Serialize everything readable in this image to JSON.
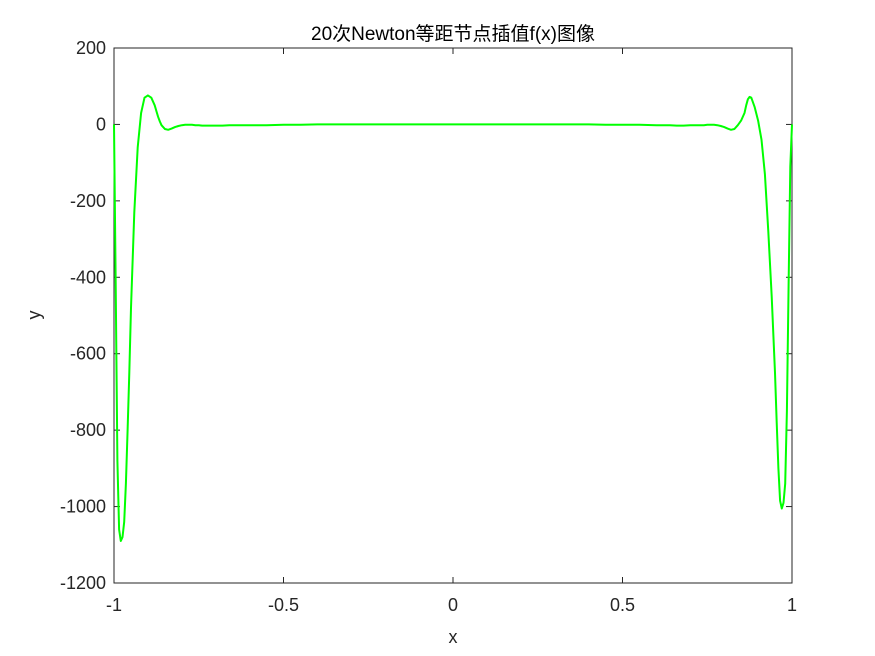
{
  "chart_data": {
    "type": "line",
    "title": "20次Newton等距节点插值f(x)图像",
    "xlabel": "x",
    "ylabel": "y",
    "xlim": [
      -1,
      1
    ],
    "ylim": [
      -1200,
      200
    ],
    "xticks": [
      -1,
      -0.5,
      0,
      0.5,
      1
    ],
    "xtick_labels": [
      "-1",
      "-0.5",
      "0",
      "0.5",
      "1"
    ],
    "yticks": [
      -1200,
      -1000,
      -800,
      -600,
      -400,
      -200,
      0,
      200
    ],
    "ytick_labels": [
      "-1200",
      "-1000",
      "-800",
      "-600",
      "-400",
      "-200",
      "0",
      "200"
    ],
    "grid": false,
    "series": [
      {
        "color": "#00ff00",
        "x": [
          -1.0,
          -0.995,
          -0.99,
          -0.985,
          -0.98,
          -0.975,
          -0.97,
          -0.965,
          -0.96,
          -0.955,
          -0.95,
          -0.94,
          -0.93,
          -0.92,
          -0.91,
          -0.9,
          -0.89,
          -0.88,
          -0.875,
          -0.87,
          -0.865,
          -0.86,
          -0.85,
          -0.84,
          -0.83,
          -0.82,
          -0.81,
          -0.8,
          -0.79,
          -0.78,
          -0.77,
          -0.76,
          -0.75,
          -0.74,
          -0.72,
          -0.7,
          -0.68,
          -0.66,
          -0.64,
          -0.62,
          -0.6,
          -0.55,
          -0.5,
          -0.45,
          -0.4,
          -0.3,
          -0.2,
          -0.1,
          0.0,
          0.1,
          0.2,
          0.3,
          0.4,
          0.45,
          0.5,
          0.55,
          0.6,
          0.62,
          0.64,
          0.66,
          0.68,
          0.7,
          0.72,
          0.74,
          0.75,
          0.76,
          0.77,
          0.78,
          0.79,
          0.8,
          0.81,
          0.82,
          0.83,
          0.84,
          0.85,
          0.86,
          0.865,
          0.87,
          0.875,
          0.88,
          0.89,
          0.9,
          0.91,
          0.92,
          0.93,
          0.94,
          0.95,
          0.955,
          0.96,
          0.965,
          0.97,
          0.975,
          0.98,
          0.985,
          0.99,
          0.995,
          1.0
        ],
        "y": [
          0,
          -420,
          -880,
          -1060,
          -1090,
          -1080,
          -1040,
          -940,
          -800,
          -650,
          -480,
          -230,
          -60,
          30,
          70,
          76,
          70,
          50,
          35,
          20,
          8,
          -2,
          -12,
          -14,
          -11,
          -7,
          -4,
          -2,
          -1,
          -1,
          -1,
          -2,
          -2,
          -3,
          -3,
          -3,
          -3,
          -2,
          -2,
          -2,
          -2,
          -2,
          -1,
          -1,
          0,
          0,
          0,
          0,
          0,
          0,
          0,
          0,
          0,
          -1,
          -1,
          -1,
          -2,
          -2,
          -2,
          -3,
          -3,
          -2,
          -2,
          -2,
          -1,
          -1,
          -1,
          -2,
          -4,
          -7,
          -11,
          -14,
          -12,
          -2,
          10,
          30,
          50,
          66,
          72,
          70,
          45,
          10,
          -40,
          -130,
          -280,
          -450,
          -650,
          -780,
          -900,
          -985,
          -1005,
          -990,
          -940,
          -750,
          -420,
          -110,
          0
        ]
      }
    ]
  }
}
